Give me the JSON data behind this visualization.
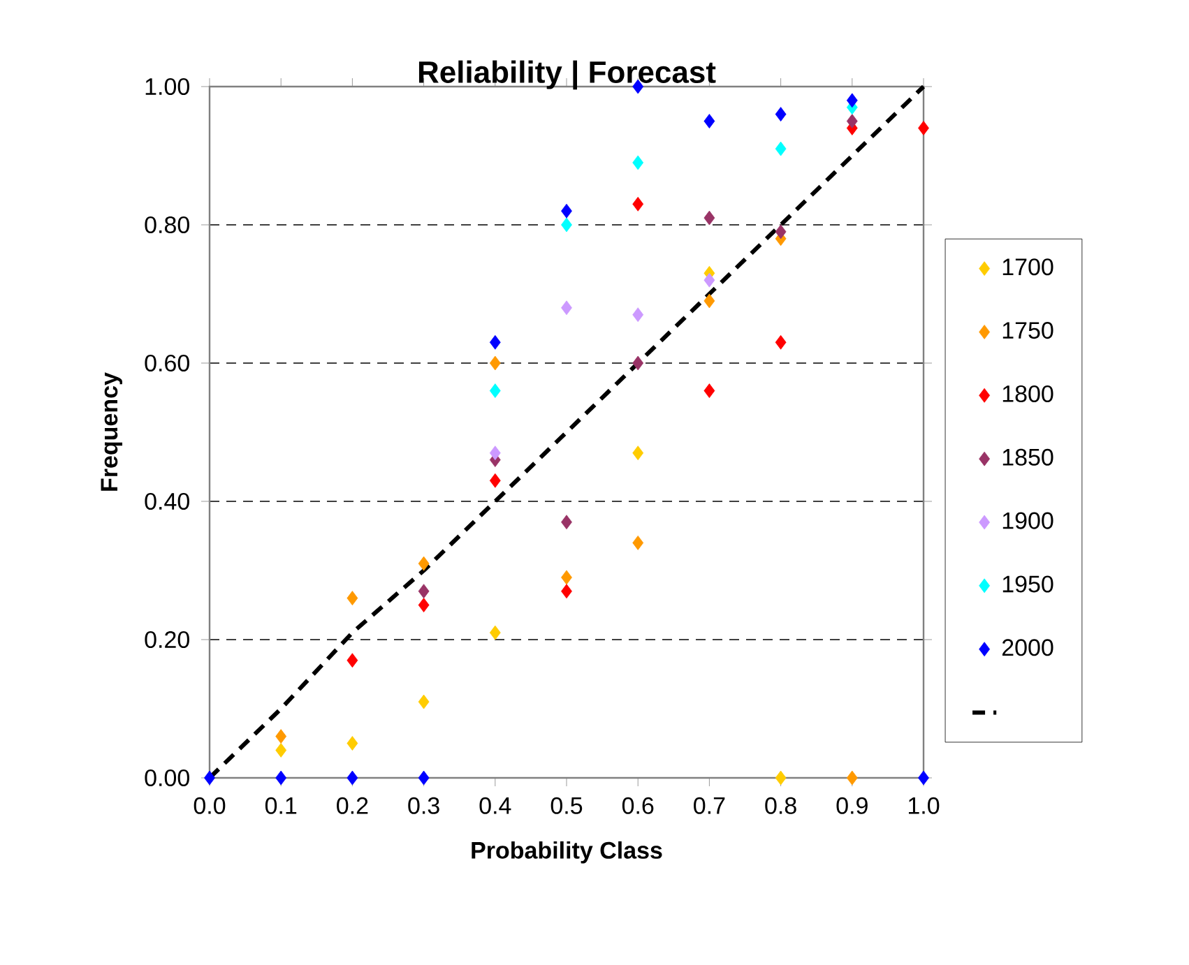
{
  "chart_data": {
    "type": "scatter",
    "title": "Reliability | Forecast",
    "xlabel": "Probability Class",
    "ylabel": "Frequency",
    "x": [
      0.0,
      0.1,
      0.2,
      0.3,
      0.4,
      0.5,
      0.6,
      0.7,
      0.8,
      0.9,
      1.0
    ],
    "series": [
      {
        "name": "1700",
        "color": "#ffcc00",
        "values": [
          null,
          0.04,
          0.05,
          0.11,
          0.21,
          null,
          0.47,
          0.73,
          0,
          null,
          null
        ]
      },
      {
        "name": "1750",
        "color": "#ff9900",
        "values": [
          null,
          0.06,
          0.26,
          0.31,
          0.6,
          0.29,
          0.34,
          0.69,
          0.78,
          0,
          null
        ]
      },
      {
        "name": "1800",
        "color": "#ff0000",
        "values": [
          null,
          null,
          0.17,
          0.25,
          0.43,
          0.27,
          0.83,
          0.56,
          0.63,
          0.94,
          0.94
        ]
      },
      {
        "name": "1850",
        "color": "#993366",
        "values": [
          null,
          null,
          null,
          0.27,
          0.46,
          0.37,
          0.6,
          0.81,
          0.79,
          0.95,
          null
        ]
      },
      {
        "name": "1900",
        "color": "#cc99ff",
        "values": [
          null,
          null,
          null,
          null,
          0.47,
          0.68,
          0.67,
          0.72,
          null,
          null,
          null
        ]
      },
      {
        "name": "1950",
        "color": "#00ffff",
        "values": [
          null,
          null,
          null,
          null,
          0.56,
          0.8,
          0.89,
          null,
          0.91,
          0.97,
          null
        ]
      },
      {
        "name": "2000",
        "color": "#0000ff",
        "values": [
          0,
          0,
          0,
          0,
          0.63,
          0.82,
          1.0,
          0.95,
          0.96,
          0.98,
          0
        ]
      },
      {
        "type": "line",
        "line_style": "dashed",
        "marker": "none",
        "color": "#000000",
        "values": [
          0,
          0.1,
          0.21,
          0.3,
          0.4,
          0.5,
          0.6,
          0.7,
          0.8,
          0.9,
          1.0
        ]
      }
    ],
    "xlim": [
      0,
      1
    ],
    "ylim": [
      0,
      1
    ],
    "xticks": [
      {
        "value": 0,
        "label": "0.0"
      },
      {
        "value": 0.1,
        "label": "0.1"
      },
      {
        "value": 0.2,
        "label": "0.2"
      },
      {
        "value": 0.3,
        "label": "0.3"
      },
      {
        "value": 0.4,
        "label": "0.4"
      },
      {
        "value": 0.5,
        "label": "0.5"
      },
      {
        "value": 0.6,
        "label": "0.6"
      },
      {
        "value": 0.7,
        "label": "0.7"
      },
      {
        "value": 0.8,
        "label": "0.8"
      },
      {
        "value": 0.9,
        "label": "0.9"
      },
      {
        "value": 1.0,
        "label": "1.0"
      }
    ],
    "yticks": [
      {
        "value": 0,
        "label": "0.00"
      },
      {
        "value": 0.2,
        "label": "0.20"
      },
      {
        "value": 0.4,
        "label": "0.40"
      },
      {
        "value": 0.6,
        "label": "0.60"
      },
      {
        "value": 0.8,
        "label": "0.80"
      },
      {
        "value": 1.0,
        "label": "1.00"
      }
    ],
    "grid": "y",
    "legend": "right",
    "marker": "diamond"
  }
}
